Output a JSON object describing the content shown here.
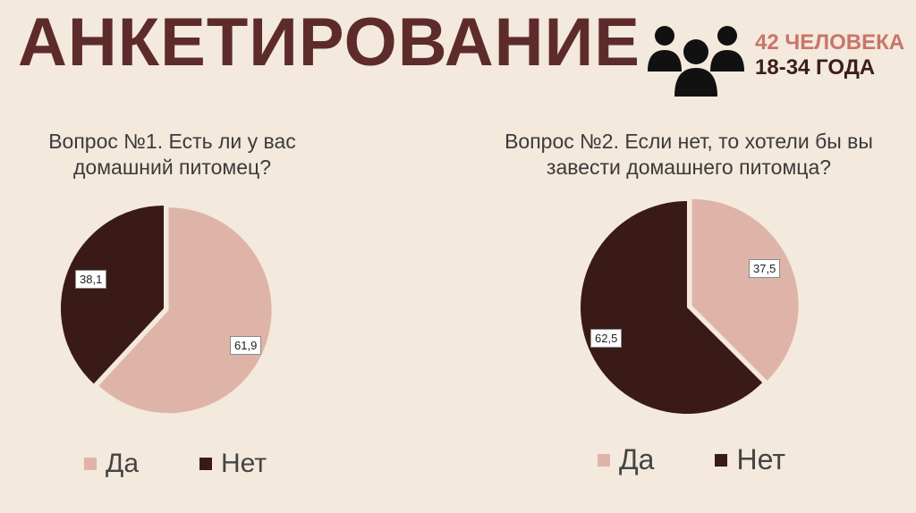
{
  "title": "АНКЕТИРОВАНИЕ",
  "icon": "group-of-people-icon",
  "info": {
    "count": "42 ЧЕЛОВЕКА",
    "age": "18-34 ГОДА"
  },
  "colors": {
    "yes": "#dfb4a8",
    "no": "#3a1a16",
    "title": "#5e2b2b",
    "accent": "#c9756a"
  },
  "chart_data": [
    {
      "type": "pie",
      "title": "Вопрос №1. Есть ли у вас домашний питомец?",
      "categories": [
        "Да",
        "Нет"
      ],
      "values": [
        61.9,
        38.1
      ],
      "value_labels": [
        "61,9",
        "38,1"
      ],
      "legend_position": "bottom"
    },
    {
      "type": "pie",
      "title": "Вопрос №2. Если нет, то хотели бы вы завести домашнего питомца?",
      "categories": [
        "Да",
        "Нет"
      ],
      "values": [
        37.5,
        62.5
      ],
      "value_labels": [
        "37,5",
        "62,5"
      ],
      "legend_position": "bottom"
    }
  ]
}
